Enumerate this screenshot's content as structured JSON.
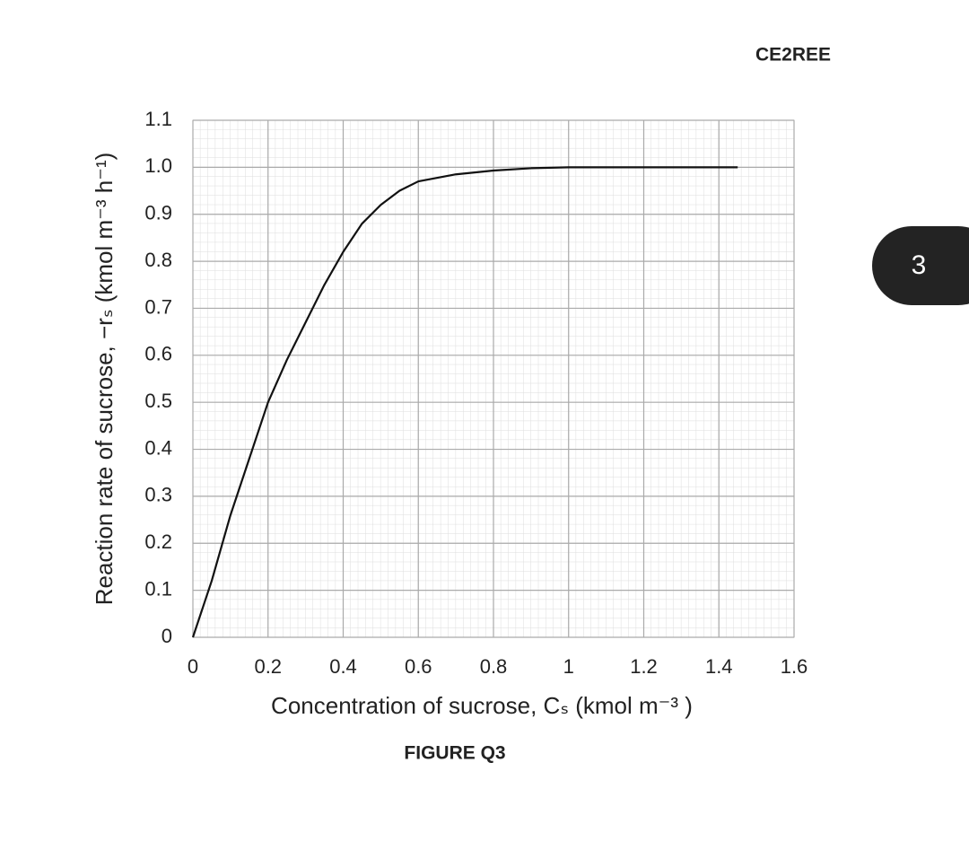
{
  "header": {
    "code": "CE2REE",
    "page": "3"
  },
  "chart_data": {
    "type": "line",
    "xlabel": "Concentration of sucrose, Cₛ (kmol m⁻³ )",
    "ylabel": "Reaction rate of sucrose, −rₛ (kmol m⁻³ h⁻¹)",
    "caption": "FIGURE Q3",
    "x": [
      0,
      0.05,
      0.1,
      0.15,
      0.2,
      0.25,
      0.3,
      0.35,
      0.4,
      0.45,
      0.5,
      0.55,
      0.6,
      0.7,
      0.8,
      0.9,
      1.0,
      1.2,
      1.45
    ],
    "series": [
      {
        "color": "#111111",
        "values": [
          0,
          0.12,
          0.26,
          0.38,
          0.5,
          0.59,
          0.67,
          0.75,
          0.82,
          0.88,
          0.92,
          0.95,
          0.97,
          0.985,
          0.993,
          0.998,
          1.0,
          1.0,
          1.0
        ]
      }
    ],
    "xlim": [
      0,
      1.6
    ],
    "ylim": [
      0,
      1.1
    ],
    "xticks": [
      0,
      0.2,
      0.4,
      0.6,
      0.8,
      1,
      1.2,
      1.4,
      1.6
    ],
    "yticks": [
      0,
      0.1,
      0.2,
      0.3,
      0.4,
      0.5,
      0.6,
      0.7,
      0.8,
      0.9,
      {
        "value": 1,
        "label": "1.0"
      },
      1.1
    ],
    "grid": true
  }
}
